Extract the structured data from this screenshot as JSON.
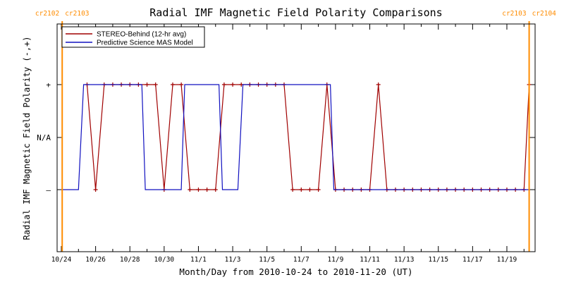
{
  "chart_data": {
    "type": "line",
    "title": "Radial IMF Magnetic Field Polarity Comparisons",
    "xlabel": "Month/Day from 2010-10-24 to 2010-11-20 (UT)",
    "ylabel": "Radial IMF Magnetic Field Polarity (-,+)",
    "x_range_days": [
      0,
      27.4
    ],
    "y_levels": {
      "-": -1,
      "N/A": 0,
      "+": 1
    },
    "ylim": [
      -1.6,
      2.0
    ],
    "x_ticks": [
      {
        "day": 0,
        "label": "10/24"
      },
      {
        "day": 2,
        "label": "10/26"
      },
      {
        "day": 4,
        "label": "10/28"
      },
      {
        "day": 6,
        "label": "10/30"
      },
      {
        "day": 8,
        "label": "11/1"
      },
      {
        "day": 10,
        "label": "11/3"
      },
      {
        "day": 12,
        "label": "11/5"
      },
      {
        "day": 14,
        "label": "11/7"
      },
      {
        "day": 16,
        "label": "11/9"
      },
      {
        "day": 18,
        "label": "11/11"
      },
      {
        "day": 20,
        "label": "11/13"
      },
      {
        "day": 22,
        "label": "11/15"
      },
      {
        "day": 24,
        "label": "11/17"
      },
      {
        "day": 26,
        "label": "11/19"
      }
    ],
    "y_ticks": [
      {
        "value": 1,
        "label": "+"
      },
      {
        "value": 0,
        "label": "N/A"
      },
      {
        "value": -1,
        "label": "–"
      }
    ],
    "rotations": [
      {
        "day": 0.05,
        "left": "cr2102",
        "right": "cr2103"
      },
      {
        "day": 27.3,
        "left": "cr2103",
        "right": "cr2104"
      }
    ],
    "legend_position": "top-left",
    "series": [
      {
        "name": "STEREO-Behind (12-hr avg)",
        "color": "#a00000",
        "markers": true,
        "x": [
          1.5,
          2.0,
          2.5,
          3.0,
          3.5,
          4.0,
          4.5,
          5.0,
          5.5,
          6.0,
          6.5,
          7.0,
          7.5,
          8.0,
          8.5,
          9.0,
          9.5,
          10.0,
          10.5,
          11.0,
          11.5,
          12.0,
          12.5,
          13.0,
          13.5,
          14.0,
          14.5,
          15.0,
          15.5,
          16.0,
          16.5,
          17.0,
          17.5,
          18.0,
          18.5,
          19.0,
          19.5,
          20.0,
          20.5,
          21.0,
          21.5,
          22.0,
          22.5,
          23.0,
          23.5,
          24.0,
          24.5,
          25.0,
          25.5,
          26.0,
          26.5,
          27.0,
          27.3
        ],
        "y": [
          1,
          -1,
          1,
          1,
          1,
          1,
          1,
          1,
          1,
          -1,
          1,
          1,
          -1,
          -1,
          -1,
          -1,
          1,
          1,
          1,
          1,
          1,
          1,
          1,
          1,
          -1,
          -1,
          -1,
          -1,
          1,
          -1,
          -1,
          -1,
          -1,
          -1,
          1,
          -1,
          -1,
          -1,
          -1,
          -1,
          -1,
          -1,
          -1,
          -1,
          -1,
          -1,
          -1,
          -1,
          -1,
          -1,
          -1,
          -1,
          1
        ]
      },
      {
        "name": "Predictive Science MAS Model",
        "color": "#1010c0",
        "markers": false,
        "x": [
          0.0,
          1.0,
          1.3,
          4.7,
          4.9,
          7.0,
          7.2,
          9.2,
          9.4,
          10.3,
          10.6,
          15.7,
          15.9,
          27.3
        ],
        "y": [
          -1,
          -1,
          1,
          1,
          -1,
          -1,
          1,
          1,
          -1,
          -1,
          1,
          1,
          -1,
          -1
        ]
      }
    ]
  }
}
